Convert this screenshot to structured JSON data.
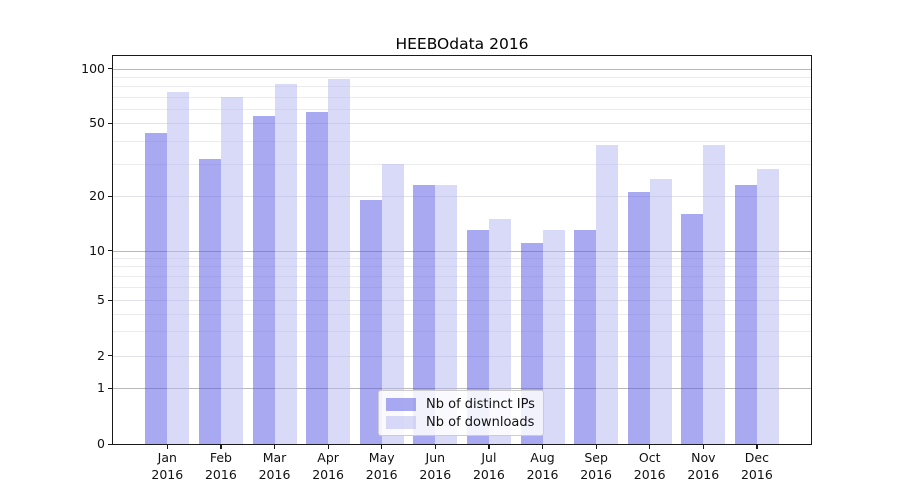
{
  "title": "HEEBOdata 2016",
  "chart_data": {
    "type": "bar",
    "title": "HEEBOdata 2016",
    "categories": [
      "Jan 2016",
      "Feb 2016",
      "Mar 2016",
      "Apr 2016",
      "May 2016",
      "Jun 2016",
      "Jul 2016",
      "Aug 2016",
      "Sep 2016",
      "Oct 2016",
      "Nov 2016",
      "Dec 2016"
    ],
    "series": [
      {
        "name": "Nb of distinct IPs",
        "color": "rgba(83,83,229,0.5)",
        "values": [
          44,
          32,
          55,
          58,
          19,
          23,
          13,
          11,
          13,
          21,
          16,
          23
        ]
      },
      {
        "name": "Nb of downloads",
        "color": "rgba(179,179,241,0.5)",
        "values": [
          74,
          70,
          82,
          88,
          30,
          23,
          15,
          13,
          38,
          25,
          38,
          28
        ]
      }
    ],
    "xlabel": "",
    "ylabel": "",
    "yscale": "asinh-like (log above 1, linear to 0)",
    "ylim": [
      0,
      113
    ],
    "yticks": [
      0,
      1,
      2,
      5,
      10,
      20,
      50,
      100
    ],
    "minor_yticks": [
      3,
      4,
      6,
      7,
      8,
      9,
      30,
      40,
      60,
      70,
      80,
      90
    ],
    "grid": true,
    "legend_position": "lower center"
  }
}
